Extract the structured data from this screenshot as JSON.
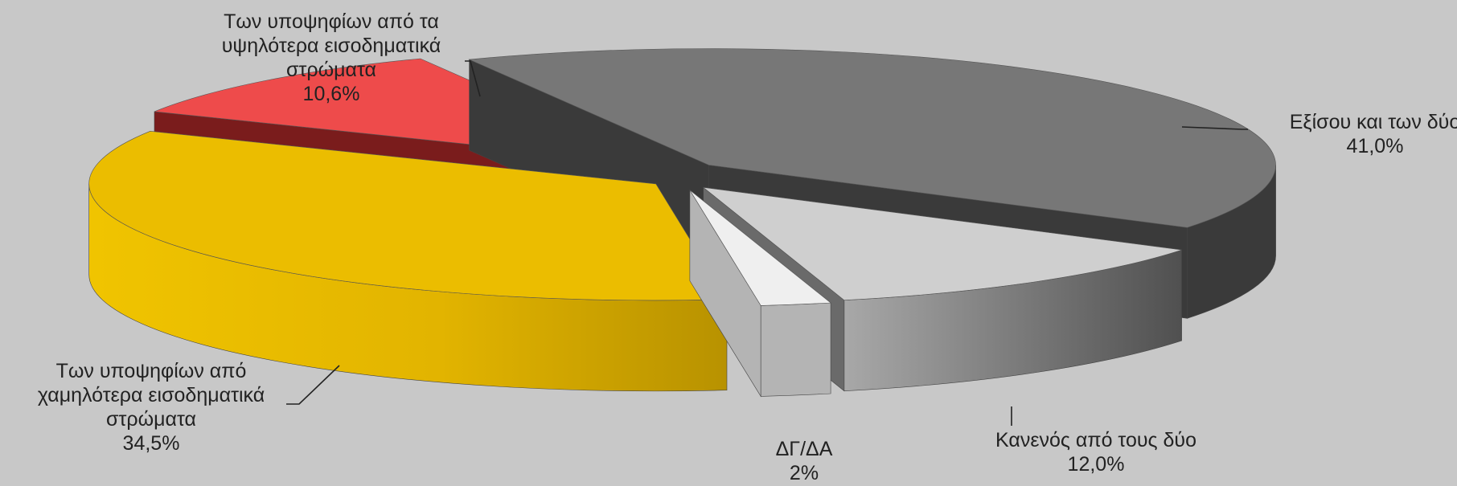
{
  "chart_data": {
    "type": "pie",
    "style": "3d-exploded",
    "title": "",
    "legend": "none",
    "slices": [
      {
        "label_lines": [
          "Εξίσου και των δύο"
        ],
        "value": 41.0,
        "value_label": "41,0%",
        "top_color": "#777777",
        "side_color": "#3a3a3a"
      },
      {
        "label_lines": [
          "Κανενός από τους δύο"
        ],
        "value": 12.0,
        "value_label": "12,0%",
        "top_color": "#cfcfcf",
        "side_color": "#6a6a6a"
      },
      {
        "label_lines": [
          "ΔΓ/ΔΑ"
        ],
        "value": 2.0,
        "value_label": "2%",
        "top_color": "#efefef",
        "side_color": "#b4b4b4"
      },
      {
        "label_lines": [
          "Των υποψηφίων από",
          "χαμηλότερα εισοδηματικά",
          "στρώματα"
        ],
        "value": 34.5,
        "value_label": "34,5%",
        "top_color": "#ebbd00",
        "side_color": "#c99e00"
      },
      {
        "label_lines": [
          "Των υποψηφίων από τα",
          "υψηλότερα εισοδηματικά",
          "στρώματα"
        ],
        "value": 10.6,
        "value_label": "10,6%",
        "top_color": "#ee4b4b",
        "side_color": "#7a1c1c"
      }
    ]
  }
}
